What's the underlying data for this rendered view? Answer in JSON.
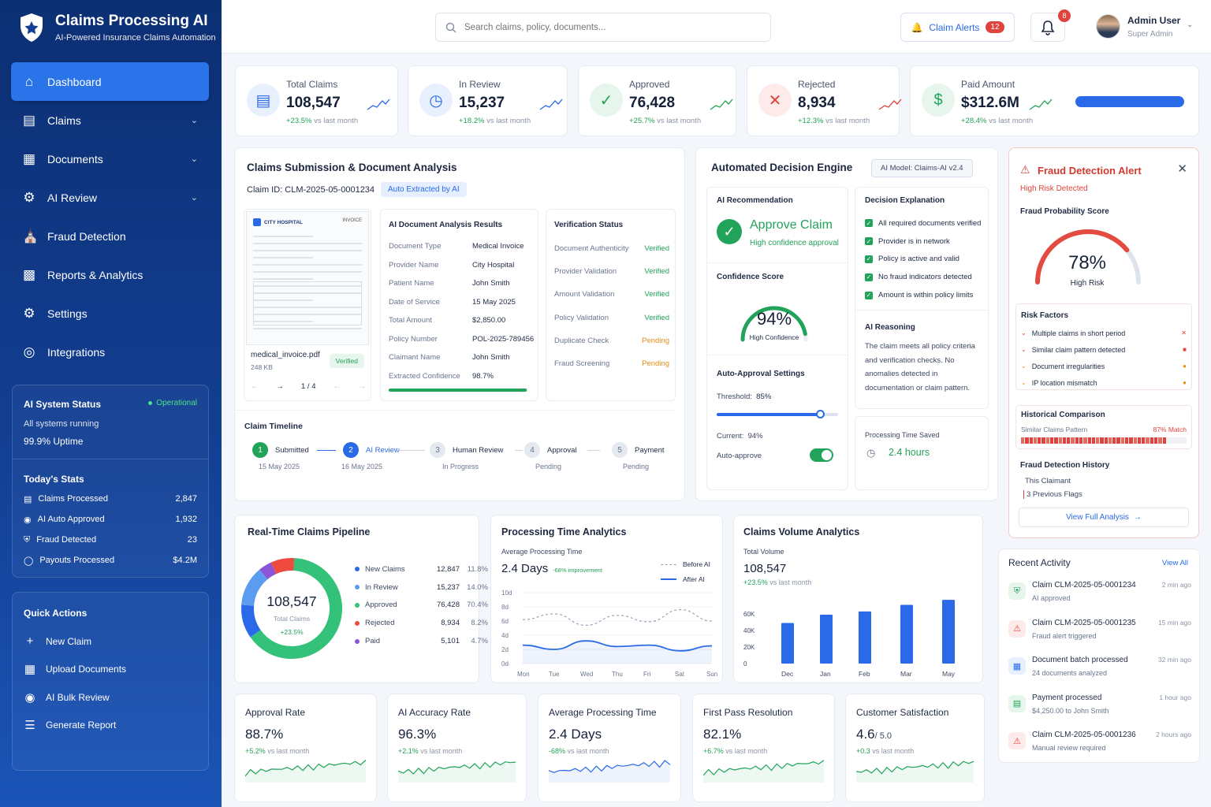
{
  "app": {
    "title": "Claims Processing AI",
    "subtitle": "AI-Powered Insurance Claims Automation"
  },
  "nav": [
    {
      "label": "Dashboard",
      "icon": "home-icon",
      "active": true,
      "chevron": false
    },
    {
      "label": "Claims",
      "icon": "clipboard-icon",
      "chevron": true
    },
    {
      "label": "Documents",
      "icon": "document-icon",
      "chevron": true
    },
    {
      "label": "AI Review",
      "icon": "ai-gear-icon",
      "chevron": true
    },
    {
      "label": "Fraud Detection",
      "icon": "bank-shield-icon",
      "chevron": false
    },
    {
      "label": "Reports & Analytics",
      "icon": "bar-chart-icon",
      "chevron": false
    },
    {
      "label": "Settings",
      "icon": "gear-icon",
      "chevron": false
    },
    {
      "label": "Integrations",
      "icon": "integration-icon",
      "chevron": false
    }
  ],
  "system_status": {
    "title": "AI System Status",
    "status": "Operational",
    "line1": "All systems running",
    "line2": "99.9% Uptime"
  },
  "today_stats": {
    "title": "Today's Stats",
    "items": [
      {
        "label": "Claims Processed",
        "value": "2,847"
      },
      {
        "label": "AI Auto Approved",
        "value": "1,932"
      },
      {
        "label": "Fraud Detected",
        "value": "23"
      },
      {
        "label": "Payouts Processed",
        "value": "$4.2M"
      }
    ]
  },
  "quick_actions": {
    "title": "Quick Actions",
    "items": [
      "New Claim",
      "Upload Documents",
      "AI Bulk Review",
      "Generate Report"
    ]
  },
  "header": {
    "search_placeholder": "Search claims, policy, documents...",
    "alerts_label": "Claim Alerts",
    "alerts_count": "12",
    "notif_count": "8",
    "user_name": "Admin User",
    "user_role": "Super Admin"
  },
  "kpis": [
    {
      "label": "Total Claims",
      "value": "108,547",
      "change": "+23.5%",
      "suffix": " vs last month",
      "color": "#2a6ae8"
    },
    {
      "label": "In Review",
      "value": "15,237",
      "change": "+18.2%",
      "suffix": " vs last month",
      "color": "#2a6ae8"
    },
    {
      "label": "Approved",
      "value": "76,428",
      "change": "+25.7%",
      "suffix": " vs last month",
      "color": "#22a35a"
    },
    {
      "label": "Rejected",
      "value": "8,934",
      "change": "+12.3%",
      "suffix": " vs last month",
      "color": "#e0433b"
    },
    {
      "label": "Paid Amount",
      "value": "$312.6M",
      "change": "+28.4%",
      "suffix": " vs last month",
      "color": "#22a35a"
    }
  ],
  "submission": {
    "title": "Claims Submission & Document Analysis",
    "claim_id_label": "Claim ID:",
    "claim_id": "CLM-2025-05-0001234",
    "auto_badge": "Auto Extracted by AI",
    "doc": {
      "hospital": "CITY HOSPITAL",
      "doc_label": "INVOICE",
      "filename": "medical_invoice.pdf",
      "size": "248 KB",
      "verified": "Verified",
      "page": "1 / 4"
    },
    "analysis": {
      "title": "AI Document Analysis Results",
      "rows": [
        {
          "k": "Document Type",
          "v": "Medical Invoice"
        },
        {
          "k": "Provider Name",
          "v": "City Hospital"
        },
        {
          "k": "Patient Name",
          "v": "John Smith"
        },
        {
          "k": "Date of Service",
          "v": "15 May 2025"
        },
        {
          "k": "Total Amount",
          "v": "$2,850.00"
        },
        {
          "k": "Policy Number",
          "v": "POL-2025-789456"
        },
        {
          "k": "Claimant Name",
          "v": "John Smith"
        },
        {
          "k": "Extracted Confidence",
          "v": "98.7%"
        }
      ],
      "confidence": 0.987
    },
    "verification": {
      "title": "Verification Status",
      "rows": [
        {
          "k": "Document Authenticity",
          "v": "Verified",
          "s": "ok"
        },
        {
          "k": "Provider Validation",
          "v": "Verified",
          "s": "ok"
        },
        {
          "k": "Amount Validation",
          "v": "Verified",
          "s": "ok"
        },
        {
          "k": "Policy Validation",
          "v": "Verified",
          "s": "ok"
        },
        {
          "k": "Duplicate Check",
          "v": "Pending",
          "s": "pending"
        },
        {
          "k": "Fraud Screening",
          "v": "Pending",
          "s": "pending"
        }
      ]
    },
    "timeline": {
      "title": "Claim Timeline",
      "steps": [
        {
          "n": "1",
          "label": "Submitted",
          "sub": "15 May 2025",
          "state": "done"
        },
        {
          "n": "2",
          "label": "AI Review",
          "sub": "16 May 2025",
          "state": "active"
        },
        {
          "n": "3",
          "label": "Human Review",
          "sub": "In Progress",
          "state": "todo"
        },
        {
          "n": "4",
          "label": "Approval",
          "sub": "Pending",
          "state": "todo"
        },
        {
          "n": "5",
          "label": "Payment",
          "sub": "Pending",
          "state": "todo"
        }
      ]
    }
  },
  "decision": {
    "title": "Automated Decision Engine",
    "model": "AI Model: Claims-AI v2.4",
    "rec_title": "AI Recommendation",
    "rec": "Approve Claim",
    "rec_sub": "High confidence approval",
    "conf_title": "Confidence Score",
    "conf_value": "94%",
    "conf_label": "High Confidence",
    "conf": 0.94,
    "auto_title": "Auto-Approval Settings",
    "threshold_label": "Threshold:",
    "threshold": "85%",
    "threshold_frac": 0.85,
    "current_label": "Current:",
    "current": "94%",
    "auto_label": "Auto-approve",
    "expl_title": "Decision Explanation",
    "checks": [
      "All required documents verified",
      "Provider is in network",
      "Policy is active and valid",
      "No fraud indicators detected",
      "Amount is within policy limits"
    ],
    "reason_title": "AI Reasoning",
    "reason": "The claim meets all policy criteria and verification checks. No anomalies detected in documentation or claim pattern.",
    "saved_title": "Processing Time Saved",
    "saved": "2.4 hours"
  },
  "fraud": {
    "title": "Fraud Detection Alert",
    "risk": "High Risk Detected",
    "score_title": "Fraud Probability Score",
    "score": "78%",
    "score_label": "High Risk",
    "score_frac": 0.78,
    "factors_title": "Risk Factors",
    "factors": [
      "Multiple claims in short period",
      "Similar claim pattern detected",
      "Document irregularities",
      "IP location mismatch"
    ],
    "hist_title": "Historical Comparison",
    "hist_label": "Similar Claims Pattern",
    "hist_match": "87% Match",
    "hist_frac": 0.87,
    "history_title": "Fraud Detection History",
    "history_line1": "This Claimant",
    "history_line2": "3 Previous Flags",
    "link": "View Full Analysis"
  },
  "pipeline": {
    "title": "Real-Time Claims Pipeline",
    "total": "108,547",
    "total_label": "Total Claims",
    "change": "+23.5%",
    "items": [
      {
        "name": "New Claims",
        "count": "12,847",
        "pct": "11.8%",
        "color": "#2a6ae8",
        "value": 11.8
      },
      {
        "name": "In Review",
        "count": "15,237",
        "pct": "14.0%",
        "color": "#5b9cf0",
        "value": 14.0
      },
      {
        "name": "Approved",
        "count": "76,428",
        "pct": "70.4%",
        "color": "#34c27a",
        "value": 70.4
      },
      {
        "name": "Rejected",
        "count": "8,934",
        "pct": "8.2%",
        "color": "#ee4a3f",
        "value": 8.2
      },
      {
        "name": "Paid",
        "count": "5,101",
        "pct": "4.7%",
        "color": "#8b55d6",
        "value": 4.7
      }
    ]
  },
  "processing": {
    "title": "Processing Time Analytics",
    "sub": "Average Processing Time",
    "value": "2.4 Days",
    "improvement": "-68% improvement",
    "legend_before": "Before AI",
    "legend_after": "After AI"
  },
  "volume": {
    "title": "Claims Volume Analytics",
    "sub": "Total Volume",
    "value": "108,547",
    "change": "+23.5%",
    "suffix": " vs last month"
  },
  "chart_data": [
    {
      "type": "line",
      "title": "Processing Time Analytics",
      "categories": [
        "Mon",
        "Tue",
        "Wed",
        "Thu",
        "Fri",
        "Sat",
        "Sun"
      ],
      "yticks": [
        "0d",
        "2d",
        "4d",
        "6d",
        "8d",
        "10d"
      ],
      "ylim": [
        0,
        10
      ],
      "series": [
        {
          "name": "Before AI",
          "values": [
            6.2,
            7.0,
            5.4,
            6.8,
            5.9,
            7.6,
            6.0
          ]
        },
        {
          "name": "After AI",
          "values": [
            2.6,
            2.0,
            3.2,
            2.4,
            2.6,
            1.8,
            2.5
          ]
        }
      ]
    },
    {
      "type": "bar",
      "title": "Claims Volume Analytics",
      "categories": [
        "Dec",
        "Jan",
        "Feb",
        "Mar",
        "May"
      ],
      "yticks": [
        "0",
        "20K",
        "40K",
        "60K"
      ],
      "ylim": [
        0,
        80000
      ],
      "values": [
        49000,
        59000,
        63000,
        71000,
        77000
      ]
    }
  ],
  "bottom_kpis": [
    {
      "label": "Approval Rate",
      "value": "88.7%",
      "unit": "",
      "change": "+5.2%",
      "suffix": " vs last month"
    },
    {
      "label": "AI Accuracy Rate",
      "value": "96.3%",
      "unit": "",
      "change": "+2.1%",
      "suffix": " vs last month"
    },
    {
      "label": "Average Processing Time",
      "value": "2.4 Days",
      "unit": "",
      "change": "-68%",
      "suffix": " vs last month",
      "style": "blue"
    },
    {
      "label": "First Pass Resolution",
      "value": "82.1%",
      "unit": "",
      "change": "+6.7%",
      "suffix": " vs last month"
    },
    {
      "label": "Customer Satisfaction",
      "value": "4.6",
      "unit": "/ 5.0",
      "change": "+0.3",
      "suffix": " vs last month"
    }
  ],
  "activity": {
    "title": "Recent Activity",
    "view_all": "View All",
    "items": [
      {
        "t": "Claim CLM-2025-05-0001234",
        "s": "AI approved",
        "time": "2 min ago",
        "icon": "shield-check-icon",
        "color": "green"
      },
      {
        "t": "Claim CLM-2025-05-0001235",
        "s": "Fraud alert triggered",
        "time": "15 min ago",
        "icon": "warning-icon",
        "color": "red"
      },
      {
        "t": "Document batch processed",
        "s": "24 documents analyzed",
        "time": "32 min ago",
        "icon": "document-icon",
        "color": "blue"
      },
      {
        "t": "Payment processed",
        "s": "$4,250.00 to John Smith",
        "time": "1 hour ago",
        "icon": "payment-icon",
        "color": "green"
      },
      {
        "t": "Claim CLM-2025-05-0001236",
        "s": "Manual review required",
        "time": "2 hours ago",
        "icon": "warning-icon",
        "color": "red"
      }
    ]
  }
}
